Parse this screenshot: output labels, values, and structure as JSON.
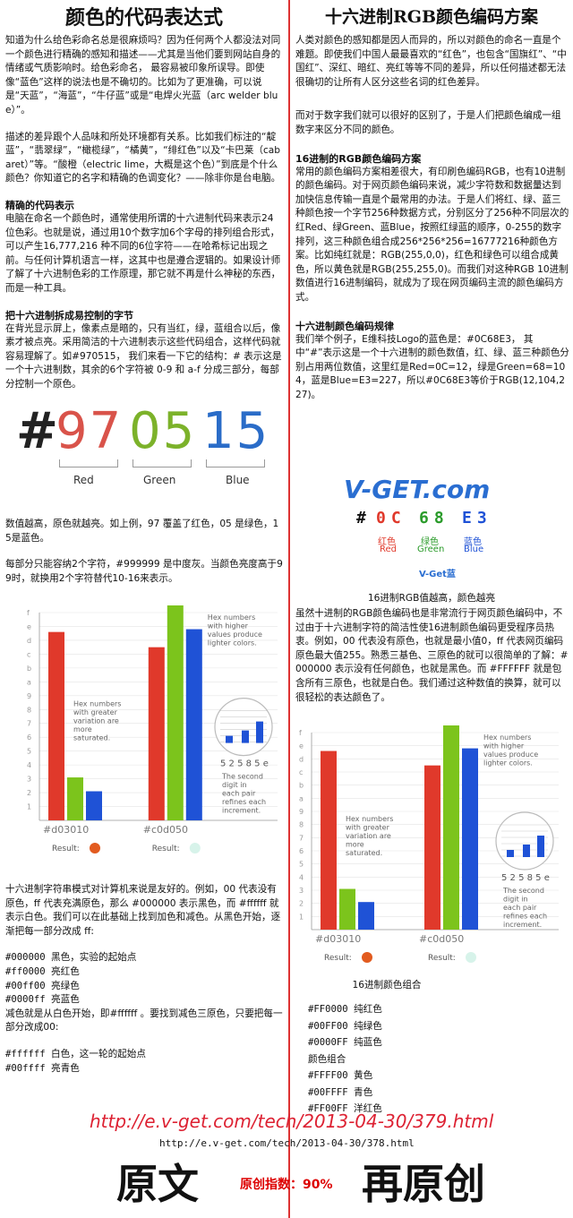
{
  "left": {
    "title": "颜色的代码表达式",
    "intro": "知道为什么给色彩命名总是很麻烦吗？因为任何两个人都没法对同一个颜色进行精确的感知和描述——尤其是当他们要到网站自身的情绪或气质影响时。给色彩命名， 最容易被印象所误导。即使像“蓝色”这样的说法也是不确切的。比如为了更准确，可以说是“天蓝”，“海蓝”，“牛仔蓝”或是“电焊火光蓝（arc welder blue）”。",
    "para2": "描述的差异跟个人品味和所处环境都有关系。比如我们标注的“靛蓝”，“翡翠绿”，“橄榄绿”，“橘黄”，“绯红色”以及“卡巴莱（cabaret）”等。“酸橙（electric lime，大概是这个色）”到底是个什么颜色？你知道它的名字和精确的色调变化？——除非你是台电脑。",
    "h1": "精确的代码表示",
    "para3": "电脑在命名一个颜色时，通常使用所谓的十六进制代码来表示24位色彩。也就是说，通过用10个数字加6个字母的排列组合形式，可以产生16,777,216 种不同的6位字符——在哈希标记出现之前。与任何计算机语言一样，这其中也是遵合逻辑的。如果设计师了解了十六进制色彩的工作原理，那它就不再是什么神秘的东西，而是一种工具。",
    "h2": "把十六进制拆成易控制的字节",
    "para4": "在背光显示屏上，像素点是暗的，只有当红，绿，蓝组合以后，像素才被点亮。采用简洁的十六进制表示这些代码组合，这样代码就容易理解了。如#970515， 我们来看一下它的结构：# 表示这是一个十六进制数，其余的6个字符被 0-9 和 a-f 分成三部分，每部分控制一个原色。",
    "hex_hash": "#",
    "hex_red": "97",
    "hex_green": "05",
    "hex_blue": "15",
    "lbl_red": "Red",
    "lbl_green": "Green",
    "lbl_blue": "Blue",
    "para5": "数值越高，原色就越亮。如上例，97 覆盖了红色，05 是绿色，15是蓝色。",
    "para6": "每部分只能容纳2个字符，#999999 是中度灰。当颜色亮度高于99时，就换用2个字符替代10-16来表示。",
    "para7": "十六进制字符串模式对计算机来说是友好的。例如，00 代表没有原色，ff 代表充满原色，那么 #000000 表示黑色，而 #ffffff 就表示白色。我们可以在此基础上找到加色和减色。从黑色开始，逐渐把每一部分改成 ff:",
    "list1": [
      "#000000 黑色，实验的起始点",
      "#ff0000 亮红色",
      "#00ff00 亮绿色",
      "#0000ff 亮蓝色"
    ],
    "para8": "减色就是从白色开始，即#ffffff 。要找到减色三原色，只要把每一部分改成00:",
    "list2": [
      "#ffffff 白色，这一轮的起始点",
      "#00ffff 亮青色"
    ]
  },
  "right": {
    "title": "十六进制RGB颜色编码方案",
    "para1": "人类对颜色的感知都是因人而异的，所以对颜色的命名一直是个难题。即使我们中国人最最喜欢的“红色”，也包含“国旗红”、“中国红”、深红、暗红、亮红等等不同的差异，所以任何描述都无法很确切的让所有人区分这些名词的红色差异。",
    "para2": "而对于数字我们就可以很好的区别了，于是人们把颜色编成一组数字来区分不同的颜色。",
    "h1": "16进制的RGB颜色编码方案",
    "para3": "常用的颜色编码方案相差很大，有印刷色编码RGB，也有10进制的颜色编码。对于网页颜色编码来说，减少字符数和数据量达到加快信息传输一直是个最常用的办法。于是人们将红、绿、蓝三种颜色按一个字节256种数据方式，分别区分了256种不同层次的红Red、绿Green、蓝Blue，按照红绿蓝的顺序，0-255的数字排列，这三种颜色组合成256*256*256=16777216种颜色方案。比如纯红就是：RGB(255,0,0)，红色和绿色可以组合成黄色，所以黄色就是RGB(255,255,0)。而我们对这种RGB 10进制数值进行16进制编码，就成为了现在网页编码主流的颜色编码方式。",
    "h2": "十六进制颜色编码规律",
    "para4": "我们举个例子，E维科技Logo的蓝色是：#0C68E3， 其中“#”表示这是一个十六进制的颜色数值，红、绿、蓝三种颜色分别占用两位数值，这里红是Red=0C=12，绿是Green=68=104，蓝是Blue=E3=227，所以#0C68E3等价于RGB(12,104,227)。",
    "logo_text": "V-GET.com",
    "code_hash": "#",
    "code_r": "0C",
    "code_g": "68",
    "code_b": "E3",
    "cn_r": "红色",
    "cn_g": "绿色",
    "cn_b": "蓝色",
    "en_r": "Red",
    "en_g": "Green",
    "en_b": "Blue",
    "badge": "V-Get蓝",
    "caption1": "16进制RGB值越高，颜色越亮",
    "para5": "虽然十进制的RGB颜色编码也是非常流行于网页颜色编码中，不过由于十六进制字符的简洁性使16进制颜色编码更受程序员热衷。例如，00 代表没有原色，也就是最小值0，ff 代表网页编码原色最大值255。熟悉三基色、三原色的就可以很简单的了解：#000000 表示没有任何颜色，也就是黑色。而 #FFFFFF 就是包含所有三原色，也就是白色。我们通过这种数值的换算，就可以很轻松的表达颜色了。",
    "caption2": "16进制颜色组合",
    "list": [
      "#FF0000 纯红色",
      "#00FF00 纯绿色",
      "#0000FF 纯蓝色",
      "颜色组合",
      "#FFFF00 黄色",
      "#00FFFF 青色",
      "#FF00FF 洋红色"
    ]
  },
  "chart": {
    "yticks": [
      "f",
      "e",
      "d",
      "c",
      "b",
      "a",
      "9",
      "8",
      "7",
      "6",
      "5",
      "4",
      "3",
      "2",
      "1"
    ],
    "note_left": "Hex numbers with greater variation are more saturated.",
    "note_right": "Hex numbers with higher values produce lighter colors.",
    "zoom_digits": "5 2  5 8  5 e",
    "zoom_note": "The second digit in each pair refines each increment.",
    "code1": "#d03010",
    "code2": "#c0d050",
    "result_label": "Result:",
    "chart1_values": [
      13.6,
      3.1,
      2.1
    ],
    "chart2_values": [
      12.5,
      15.8,
      13.8
    ]
  },
  "footer": {
    "url_big": "http://e.v-get.com/tech/2013-04-30/379.html",
    "url_small": "http://e.v-get.com/tech/2013-04-30/378.html",
    "left_label": "原文",
    "right_label": "再原创",
    "index_label": "原创指数：90%"
  },
  "colors": {
    "red": "#e0392b",
    "green": "#7cc41c",
    "blue": "#1f52d6",
    "divider": "#d33",
    "link": "#d23"
  }
}
